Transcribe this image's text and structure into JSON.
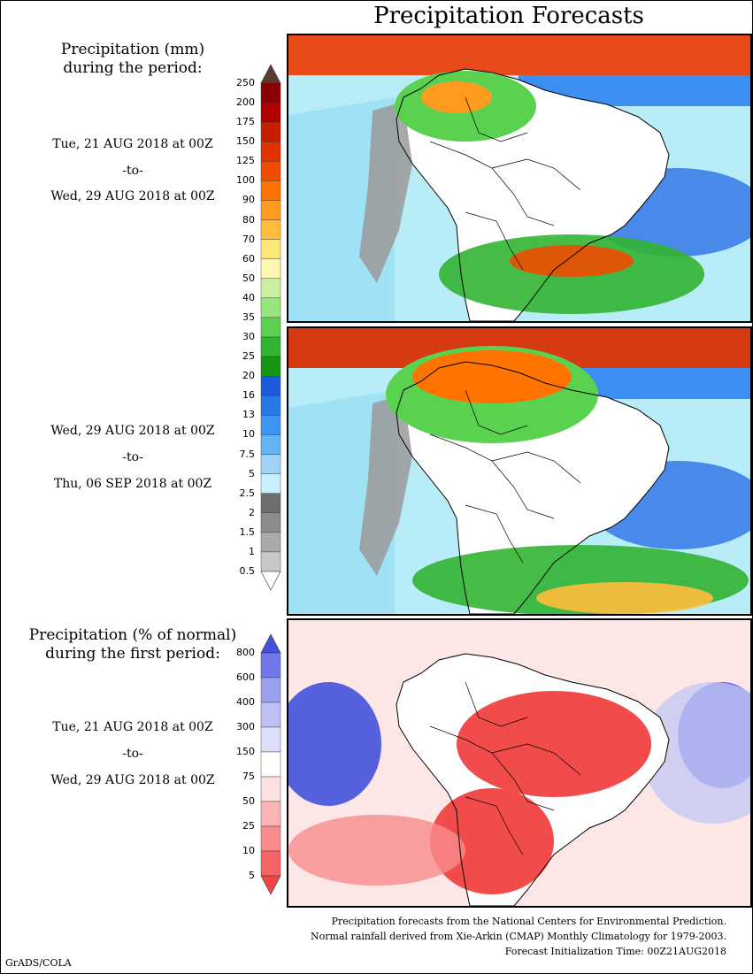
{
  "title": "Precipitation Forecasts",
  "section_mm": {
    "title_line1": "Precipitation (mm)",
    "title_line2": "during the period:"
  },
  "period1": {
    "start": "Tue, 21 AUG 2018 at 00Z",
    "sep": "-to-",
    "end": "Wed, 29 AUG 2018 at 00Z"
  },
  "period2": {
    "start": "Wed, 29 AUG 2018 at 00Z",
    "sep": "-to-",
    "end": "Thu, 06 SEP 2018 at 00Z"
  },
  "section_pct": {
    "title_line1": "Precipitation (% of normal)",
    "title_line2": "during the first period:"
  },
  "period3": {
    "start": "Tue, 21 AUG 2018 at 00Z",
    "sep": "-to-",
    "end": "Wed, 29 AUG 2018 at 00Z"
  },
  "colorbar_mm": {
    "labels": [
      "250",
      "200",
      "175",
      "150",
      "125",
      "100",
      "90",
      "80",
      "70",
      "60",
      "50",
      "40",
      "35",
      "30",
      "25",
      "20",
      "16",
      "13",
      "10",
      "7.5",
      "5",
      "2.5",
      "2",
      "1.5",
      "1",
      "0.5"
    ],
    "colors": [
      "#5a3c33",
      "#8b0000",
      "#b00000",
      "#c81e00",
      "#e03200",
      "#f04b00",
      "#ff7300",
      "#ff9b1e",
      "#ffbe3c",
      "#ffe878",
      "#fff8b0",
      "#c8f0a0",
      "#96e67d",
      "#5ad250",
      "#32b432",
      "#149614",
      "#1e5adc",
      "#2878e6",
      "#3c96f0",
      "#64b4f5",
      "#a0d2fa",
      "#c8f0ff",
      "#6e6e6e",
      "#8c8c8c",
      "#aaaaaa",
      "#c8c8c8",
      "#ffffff"
    ]
  },
  "colorbar_pct": {
    "labels": [
      "800",
      "600",
      "400",
      "300",
      "150",
      "75",
      "50",
      "25",
      "10",
      "5"
    ],
    "colors": [
      "#4650dc",
      "#6e78e6",
      "#9aa0ee",
      "#bcc0f4",
      "#dcdefa",
      "#ffffff",
      "#fde0e0",
      "#fbb4b4",
      "#f88c8c",
      "#f46464",
      "#f04646"
    ]
  },
  "footer": {
    "line1": "Precipitation forecasts from the National Centers for Environmental Prediction.",
    "line2": "Normal rainfall derived from Xie-Arkin (CMAP) Monthly Climatology for 1979-2003.",
    "line3": "Forecast Initialization Time: 00Z21AUG2018"
  },
  "credit": "GrADS/COLA"
}
